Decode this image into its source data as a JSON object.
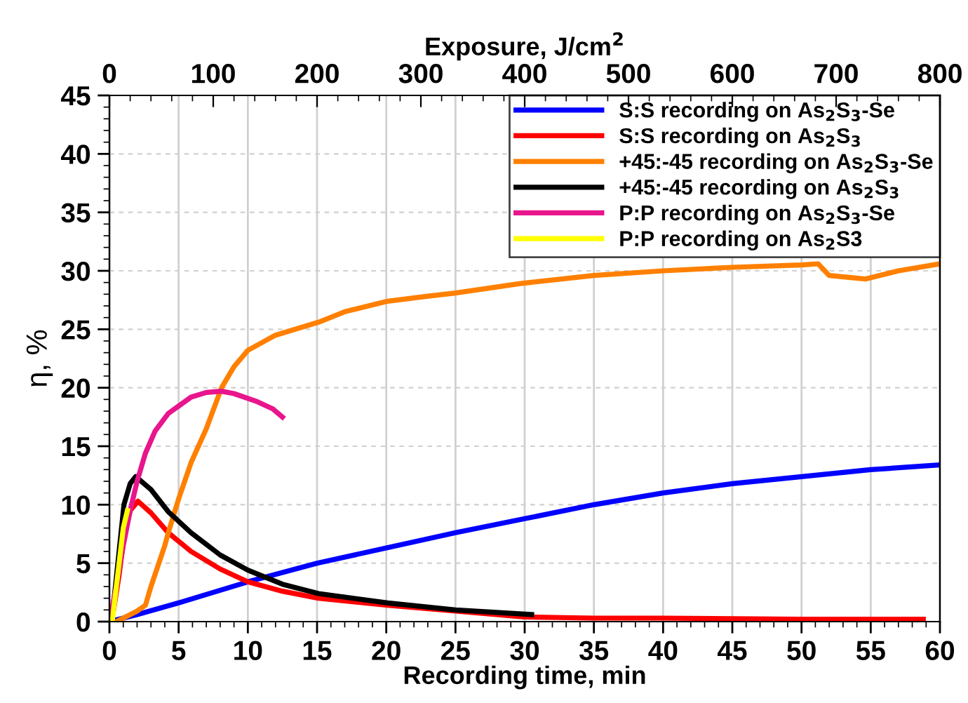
{
  "chart_data": {
    "type": "line",
    "xlabel": "Recording time, min",
    "ylabel": "η, %",
    "x2label": "Exposure, J/cm$^{2}$",
    "xlim": [
      0,
      60
    ],
    "xticks": [
      0,
      5,
      10,
      15,
      20,
      25,
      30,
      35,
      40,
      45,
      50,
      55,
      60
    ],
    "ylim": [
      0,
      45
    ],
    "yticks": [
      0,
      5,
      10,
      15,
      20,
      25,
      30,
      35,
      40,
      45
    ],
    "x2lim": [
      0,
      800
    ],
    "x2ticks": [
      0,
      100,
      200,
      300,
      400,
      500,
      600,
      700,
      800
    ],
    "grid": true,
    "legend": "top right",
    "line_style": "solid",
    "marker": "none",
    "series": [
      {
        "name": "S:S recording on As$_{2}$S$_{3}$-Se",
        "color": "#0000ff",
        "x": [
          0,
          2,
          5,
          10,
          15,
          20,
          25,
          30,
          35,
          40,
          45,
          50,
          55,
          60
        ],
        "values": [
          0,
          0.6,
          1.6,
          3.4,
          5.0,
          6.3,
          7.6,
          8.8,
          10.0,
          11.0,
          11.8,
          12.4,
          13.0,
          13.4
        ]
      },
      {
        "name": "S:S recording on As$_{2}$S$_{3}$",
        "color": "#ff0000",
        "x": [
          0,
          0.3,
          0.7,
          1.05,
          1.5,
          2.06,
          3,
          4.25,
          5.9,
          8,
          10,
          12.5,
          15.1,
          20.1,
          25,
          30,
          35,
          40,
          50,
          58.8
        ],
        "values": [
          0,
          1,
          4,
          7.2,
          9.5,
          10.3,
          9.3,
          7.6,
          6.0,
          4.5,
          3.4,
          2.6,
          2.0,
          1.4,
          0.9,
          0.4,
          0.3,
          0.3,
          0.2,
          0.2
        ]
      },
      {
        "name": "+45:-45 recording on As$_{2}$S$_{3}$-Se",
        "color": "#ff8000",
        "x": [
          0.5,
          1,
          2,
          2.6,
          3,
          4,
          4.25,
          5,
          5.9,
          7,
          8.1,
          9,
          10,
          12,
          15.1,
          17,
          20.1,
          22.8,
          25,
          29.6,
          35,
          40,
          45,
          50,
          51.2,
          52,
          54.6,
          57,
          60
        ],
        "values": [
          0,
          0.3,
          0.9,
          1.4,
          3,
          6.5,
          7.6,
          10.5,
          13.6,
          16.5,
          20,
          21.8,
          23.2,
          24.5,
          25.6,
          26.5,
          27.4,
          27.8,
          28.1,
          28.9,
          29.6,
          30.0,
          30.3,
          30.5,
          30.6,
          29.6,
          29.3,
          30.0,
          30.6
        ]
      },
      {
        "name": "+45:-45 recording on As$_{2}$S$_{3}$",
        "color": "#000000",
        "x": [
          0,
          0.3,
          0.7,
          1.05,
          1.5,
          1.9,
          3,
          4.25,
          5.9,
          8,
          10,
          12.5,
          15.1,
          20.1,
          25,
          30.5
        ],
        "values": [
          0,
          1.5,
          6,
          10,
          11.8,
          12.4,
          11.3,
          9.4,
          7.6,
          5.7,
          4.4,
          3.2,
          2.4,
          1.6,
          1.0,
          0.6
        ]
      },
      {
        "name": "P:P recording on As$_{2}$S$_{3}$-Se",
        "color": "#e8158c",
        "x": [
          0,
          0.5,
          1,
          1.5,
          2,
          2.6,
          3.3,
          4.25,
          5.9,
          7,
          8.1,
          9,
          10.7,
          11.8,
          12.5
        ],
        "values": [
          0,
          3,
          6.5,
          9.5,
          12,
          14.4,
          16.3,
          17.8,
          19.2,
          19.6,
          19.7,
          19.5,
          18.8,
          18.2,
          17.5
        ]
      },
      {
        "name": "P:P recording on As$_{2}$S3",
        "color": "#ffff00",
        "x": [
          0.2,
          0.4,
          0.7,
          1.0,
          1.3
        ],
        "values": [
          0,
          2,
          5,
          8,
          9.5
        ]
      }
    ]
  }
}
